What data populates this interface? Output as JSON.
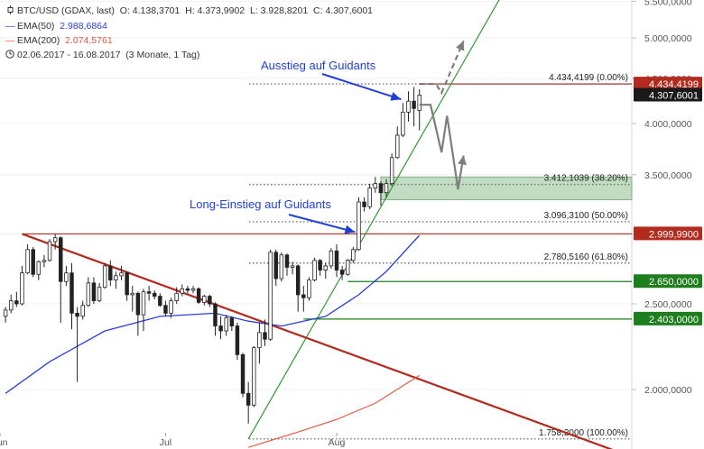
{
  "header": {
    "instrument": "BTC/USD (GDAX, last)",
    "ohlc": "O: 4.138,3701  H: 4.373,9902  L: 3.928,8201  C: 4.307,6001",
    "ema50_label": "EMA(50)",
    "ema50_value": "2.988,6864",
    "ema200_label": "EMA(200)",
    "ema200_value": "2.074,5761",
    "range_text": "02.06.2017 - 16.08.2017",
    "period_text": "(3 Monate, 1 Tag)"
  },
  "colors": {
    "ema50": "#2b3fd8",
    "ema200": "#e2553f",
    "resistance_tag": "#b22b1e",
    "support_tag": "#1e7e1e",
    "price_tag": "#1a1a1a",
    "annotation": "#1f3fd6",
    "zone_fill": "#8fbf8f",
    "trend_up": "#2e9a2e",
    "trend_down": "#b22b1e",
    "projection": "#7d7d7d"
  },
  "annotations": {
    "exit": "Ausstieg auf Guidants",
    "entry": "Long-Einstieg auf Guidants"
  },
  "chart_data": {
    "type": "candlestick",
    "title": "BTC/USD (GDAX, last)",
    "x_range": [
      "2017-06-02",
      "2017-08-16"
    ],
    "x_ticks": [
      {
        "label": "Jun",
        "date": "2017-06-01"
      },
      {
        "label": "Jul",
        "date": "2017-07-01"
      },
      {
        "label": "Aug",
        "date": "2017-08-01"
      }
    ],
    "y_scale": "log",
    "y_range": [
      1700,
      5600
    ],
    "y_ticks": [
      {
        "value": 2000,
        "label": "2.000,0000"
      },
      {
        "value": 2500,
        "label": "2.500,0000"
      },
      {
        "value": 3000,
        "label": "3.000,0000"
      },
      {
        "value": 3500,
        "label": "3.500,0000"
      },
      {
        "value": 4000,
        "label": "4.000,0000"
      },
      {
        "value": 4500,
        "label": "4.500,0000"
      },
      {
        "value": 5000,
        "label": "5.000,0000"
      },
      {
        "value": 5500,
        "label": "5.500,0000"
      }
    ],
    "candles": [
      {
        "date": "2017-06-02",
        "o": 2420,
        "h": 2480,
        "l": 2380,
        "c": 2460
      },
      {
        "date": "2017-06-03",
        "o": 2460,
        "h": 2560,
        "l": 2440,
        "c": 2520
      },
      {
        "date": "2017-06-04",
        "o": 2520,
        "h": 2580,
        "l": 2480,
        "c": 2500
      },
      {
        "date": "2017-06-05",
        "o": 2500,
        "h": 2760,
        "l": 2490,
        "c": 2710
      },
      {
        "date": "2017-06-06",
        "o": 2710,
        "h": 2920,
        "l": 2700,
        "c": 2880
      },
      {
        "date": "2017-06-07",
        "o": 2880,
        "h": 2900,
        "l": 2680,
        "c": 2700
      },
      {
        "date": "2017-06-08",
        "o": 2700,
        "h": 2800,
        "l": 2660,
        "c": 2790
      },
      {
        "date": "2017-06-09",
        "o": 2790,
        "h": 2840,
        "l": 2750,
        "c": 2800
      },
      {
        "date": "2017-06-10",
        "o": 2800,
        "h": 2960,
        "l": 2790,
        "c": 2940
      },
      {
        "date": "2017-06-11",
        "o": 2940,
        "h": 3000,
        "l": 2880,
        "c": 2970
      },
      {
        "date": "2017-06-12",
        "o": 2970,
        "h": 2980,
        "l": 2380,
        "c": 2650
      },
      {
        "date": "2017-06-13",
        "o": 2650,
        "h": 2760,
        "l": 2620,
        "c": 2710
      },
      {
        "date": "2017-06-14",
        "o": 2710,
        "h": 2780,
        "l": 2340,
        "c": 2440
      },
      {
        "date": "2017-06-15",
        "o": 2440,
        "h": 2480,
        "l": 2040,
        "c": 2420
      },
      {
        "date": "2017-06-16",
        "o": 2420,
        "h": 2520,
        "l": 2400,
        "c": 2490
      },
      {
        "date": "2017-06-17",
        "o": 2490,
        "h": 2680,
        "l": 2480,
        "c": 2640
      },
      {
        "date": "2017-06-18",
        "o": 2640,
        "h": 2680,
        "l": 2500,
        "c": 2520
      },
      {
        "date": "2017-06-19",
        "o": 2520,
        "h": 2640,
        "l": 2510,
        "c": 2610
      },
      {
        "date": "2017-06-20",
        "o": 2610,
        "h": 2780,
        "l": 2600,
        "c": 2760
      },
      {
        "date": "2017-06-21",
        "o": 2760,
        "h": 2800,
        "l": 2620,
        "c": 2660
      },
      {
        "date": "2017-06-22",
        "o": 2660,
        "h": 2720,
        "l": 2600,
        "c": 2690
      },
      {
        "date": "2017-06-23",
        "o": 2690,
        "h": 2760,
        "l": 2660,
        "c": 2710
      },
      {
        "date": "2017-06-24",
        "o": 2710,
        "h": 2720,
        "l": 2520,
        "c": 2560
      },
      {
        "date": "2017-06-25",
        "o": 2560,
        "h": 2620,
        "l": 2450,
        "c": 2570
      },
      {
        "date": "2017-06-26",
        "o": 2570,
        "h": 2580,
        "l": 2300,
        "c": 2430
      },
      {
        "date": "2017-06-27",
        "o": 2430,
        "h": 2600,
        "l": 2330,
        "c": 2580
      },
      {
        "date": "2017-06-28",
        "o": 2580,
        "h": 2620,
        "l": 2520,
        "c": 2570
      },
      {
        "date": "2017-06-29",
        "o": 2570,
        "h": 2590,
        "l": 2530,
        "c": 2550
      },
      {
        "date": "2017-06-30",
        "o": 2550,
        "h": 2570,
        "l": 2480,
        "c": 2490
      },
      {
        "date": "2017-07-01",
        "o": 2490,
        "h": 2520,
        "l": 2420,
        "c": 2440
      },
      {
        "date": "2017-07-02",
        "o": 2440,
        "h": 2540,
        "l": 2410,
        "c": 2520
      },
      {
        "date": "2017-07-03",
        "o": 2520,
        "h": 2610,
        "l": 2500,
        "c": 2570
      },
      {
        "date": "2017-07-04",
        "o": 2570,
        "h": 2630,
        "l": 2550,
        "c": 2600
      },
      {
        "date": "2017-07-05",
        "o": 2600,
        "h": 2620,
        "l": 2570,
        "c": 2590
      },
      {
        "date": "2017-07-06",
        "o": 2590,
        "h": 2620,
        "l": 2570,
        "c": 2600
      },
      {
        "date": "2017-07-07",
        "o": 2600,
        "h": 2610,
        "l": 2500,
        "c": 2510
      },
      {
        "date": "2017-07-08",
        "o": 2510,
        "h": 2560,
        "l": 2490,
        "c": 2550
      },
      {
        "date": "2017-07-09",
        "o": 2550,
        "h": 2560,
        "l": 2480,
        "c": 2500
      },
      {
        "date": "2017-07-10",
        "o": 2500,
        "h": 2510,
        "l": 2300,
        "c": 2360
      },
      {
        "date": "2017-07-11",
        "o": 2360,
        "h": 2420,
        "l": 2280,
        "c": 2330
      },
      {
        "date": "2017-07-12",
        "o": 2330,
        "h": 2430,
        "l": 2300,
        "c": 2410
      },
      {
        "date": "2017-07-13",
        "o": 2410,
        "h": 2420,
        "l": 2330,
        "c": 2360
      },
      {
        "date": "2017-07-14",
        "o": 2360,
        "h": 2380,
        "l": 2160,
        "c": 2190
      },
      {
        "date": "2017-07-15",
        "o": 2190,
        "h": 2200,
        "l": 1960,
        "c": 1980
      },
      {
        "date": "2017-07-16",
        "o": 1980,
        "h": 2040,
        "l": 1830,
        "c": 1920
      },
      {
        "date": "2017-07-17",
        "o": 1920,
        "h": 2240,
        "l": 1910,
        "c": 2230
      },
      {
        "date": "2017-07-18",
        "o": 2230,
        "h": 2380,
        "l": 2140,
        "c": 2320
      },
      {
        "date": "2017-07-19",
        "o": 2320,
        "h": 2400,
        "l": 2240,
        "c": 2280
      },
      {
        "date": "2017-07-20",
        "o": 2280,
        "h": 2880,
        "l": 2270,
        "c": 2860
      },
      {
        "date": "2017-07-21",
        "o": 2860,
        "h": 2880,
        "l": 2620,
        "c": 2670
      },
      {
        "date": "2017-07-22",
        "o": 2670,
        "h": 2860,
        "l": 2650,
        "c": 2840
      },
      {
        "date": "2017-07-23",
        "o": 2840,
        "h": 2850,
        "l": 2690,
        "c": 2750
      },
      {
        "date": "2017-07-24",
        "o": 2750,
        "h": 2790,
        "l": 2700,
        "c": 2760
      },
      {
        "date": "2017-07-25",
        "o": 2760,
        "h": 2770,
        "l": 2450,
        "c": 2560
      },
      {
        "date": "2017-07-26",
        "o": 2560,
        "h": 2620,
        "l": 2450,
        "c": 2540
      },
      {
        "date": "2017-07-27",
        "o": 2540,
        "h": 2680,
        "l": 2520,
        "c": 2660
      },
      {
        "date": "2017-07-28",
        "o": 2660,
        "h": 2820,
        "l": 2650,
        "c": 2800
      },
      {
        "date": "2017-07-29",
        "o": 2800,
        "h": 2810,
        "l": 2690,
        "c": 2730
      },
      {
        "date": "2017-07-30",
        "o": 2730,
        "h": 2780,
        "l": 2670,
        "c": 2760
      },
      {
        "date": "2017-07-31",
        "o": 2760,
        "h": 2890,
        "l": 2740,
        "c": 2870
      },
      {
        "date": "2017-08-01",
        "o": 2870,
        "h": 2920,
        "l": 2680,
        "c": 2730
      },
      {
        "date": "2017-08-02",
        "o": 2730,
        "h": 2760,
        "l": 2660,
        "c": 2700
      },
      {
        "date": "2017-08-03",
        "o": 2700,
        "h": 2810,
        "l": 2690,
        "c": 2800
      },
      {
        "date": "2017-08-04",
        "o": 2800,
        "h": 2900,
        "l": 2780,
        "c": 2880
      },
      {
        "date": "2017-08-05",
        "o": 2880,
        "h": 3300,
        "l": 2870,
        "c": 3260
      },
      {
        "date": "2017-08-06",
        "o": 3260,
        "h": 3300,
        "l": 3180,
        "c": 3220
      },
      {
        "date": "2017-08-07",
        "o": 3220,
        "h": 3420,
        "l": 3200,
        "c": 3380
      },
      {
        "date": "2017-08-08",
        "o": 3380,
        "h": 3480,
        "l": 3340,
        "c": 3420
      },
      {
        "date": "2017-08-09",
        "o": 3420,
        "h": 3440,
        "l": 3230,
        "c": 3340
      },
      {
        "date": "2017-08-10",
        "o": 3340,
        "h": 3460,
        "l": 3300,
        "c": 3420
      },
      {
        "date": "2017-08-11",
        "o": 3420,
        "h": 3700,
        "l": 3400,
        "c": 3660
      },
      {
        "date": "2017-08-12",
        "o": 3660,
        "h": 3970,
        "l": 3650,
        "c": 3880
      },
      {
        "date": "2017-08-13",
        "o": 3880,
        "h": 4220,
        "l": 3860,
        "c": 4120
      },
      {
        "date": "2017-08-14",
        "o": 4120,
        "h": 4350,
        "l": 4020,
        "c": 4240
      },
      {
        "date": "2017-08-15",
        "o": 4240,
        "h": 4400,
        "l": 3970,
        "c": 4160
      },
      {
        "date": "2017-08-16",
        "o": 4138.37,
        "h": 4373.99,
        "l": 3928.82,
        "c": 4307.6
      }
    ],
    "ema50": [
      {
        "date": "2017-06-02",
        "v": 1980
      },
      {
        "date": "2017-06-10",
        "v": 2150
      },
      {
        "date": "2017-06-20",
        "v": 2330
      },
      {
        "date": "2017-06-30",
        "v": 2420
      },
      {
        "date": "2017-07-10",
        "v": 2440
      },
      {
        "date": "2017-07-16",
        "v": 2390
      },
      {
        "date": "2017-07-22",
        "v": 2360
      },
      {
        "date": "2017-07-30",
        "v": 2420
      },
      {
        "date": "2017-08-05",
        "v": 2560
      },
      {
        "date": "2017-08-10",
        "v": 2720
      },
      {
        "date": "2017-08-16",
        "v": 2988.69
      }
    ],
    "ema200": [
      {
        "date": "2017-07-16",
        "v": 1720
      },
      {
        "date": "2017-07-25",
        "v": 1790
      },
      {
        "date": "2017-08-01",
        "v": 1850
      },
      {
        "date": "2017-08-08",
        "v": 1930
      },
      {
        "date": "2017-08-16",
        "v": 2074.58
      }
    ],
    "fibonacci": [
      {
        "value": 4434.4199,
        "label": "4.434,4199 (0.00%)"
      },
      {
        "value": 3412.1039,
        "label": "3.412,1039 (38.20%)"
      },
      {
        "value": 3096.31,
        "label": "3.096,3100 (50.00%)"
      },
      {
        "value": 2780.516,
        "label": "2.780,5160 (61.80%)"
      },
      {
        "value": 1758.2,
        "label": "1.758,2000 (100.00%)"
      }
    ],
    "zone": {
      "from": 3280,
      "to": 3480
    },
    "price_tags": [
      {
        "value": 4434.4199,
        "label": "4.434,4199",
        "kind": "resistance"
      },
      {
        "value": 4307.6001,
        "label": "4.307,6001",
        "kind": "price"
      },
      {
        "value": 2999.99,
        "label": "2.999,9900",
        "kind": "resistance"
      },
      {
        "value": 2650.0,
        "label": "2.650,0000",
        "kind": "support"
      },
      {
        "value": 2403.0,
        "label": "2.403,0000",
        "kind": "support"
      }
    ],
    "horizontal_lines": [
      {
        "value": 4434.4199,
        "from_date": "2017-08-16",
        "kind": "resistance"
      },
      {
        "value": 2999.99,
        "from_date": "2017-06-05",
        "kind": "resistance"
      },
      {
        "value": 2650.0,
        "from_date": "2017-08-03",
        "kind": "support"
      },
      {
        "value": 2403.0,
        "from_date": "2017-07-26",
        "kind": "support"
      }
    ],
    "trendlines": [
      {
        "kind": "up",
        "from": {
          "date": "2017-07-16",
          "v": 1758.2
        },
        "to": {
          "date": "2017-08-31",
          "v": 5600
        }
      },
      {
        "kind": "down",
        "from": {
          "date": "2017-06-05",
          "v": 2999.99
        },
        "to": {
          "date": "2017-09-21",
          "v": 1700
        }
      }
    ],
    "projections": [
      {
        "style": "dashed",
        "points": [
          {
            "date": "2017-08-16",
            "v": 4434.42
          },
          {
            "date": "2017-08-19",
            "v": 4434.42
          },
          {
            "date": "2017-08-20",
            "v": 4330
          },
          {
            "date": "2017-08-24",
            "v": 4960
          }
        ]
      },
      {
        "style": "solid",
        "points": [
          {
            "date": "2017-08-16",
            "v": 4200
          },
          {
            "date": "2017-08-18",
            "v": 4200
          },
          {
            "date": "2017-08-20",
            "v": 3710
          },
          {
            "date": "2017-08-21",
            "v": 4080
          },
          {
            "date": "2017-08-23",
            "v": 3370
          },
          {
            "date": "2017-08-24",
            "v": 3680
          }
        ]
      }
    ]
  }
}
